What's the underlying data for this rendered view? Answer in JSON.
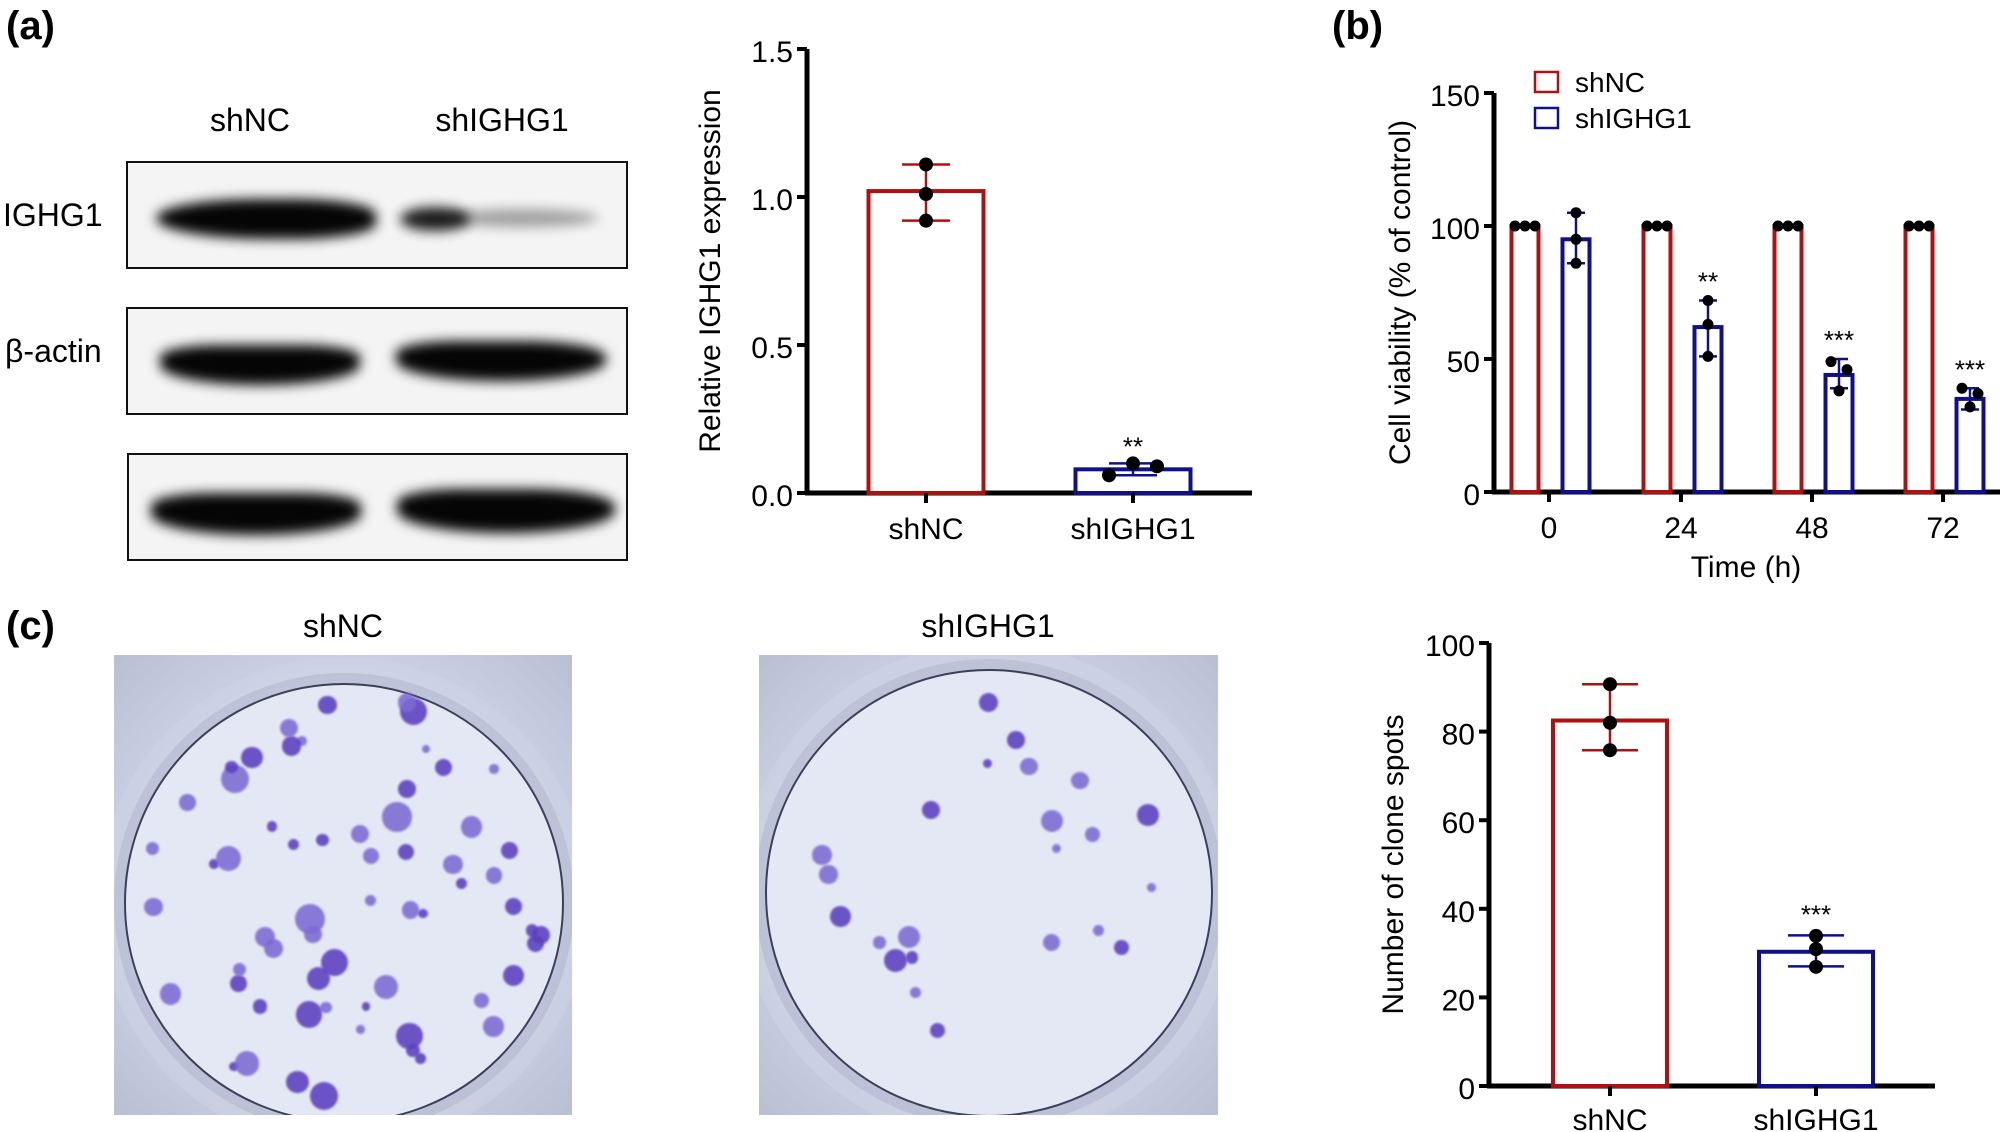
{
  "panels": {
    "a": {
      "label": "(a)",
      "blot": {
        "lanes": [
          "shNC",
          "shIGHG1"
        ],
        "rows": [
          {
            "label": "IGHG1",
            "bands": [
              1.0,
              0.35
            ]
          },
          {
            "label": "β-actin",
            "bands": [
              1.0,
              1.0
            ]
          },
          {
            "label": "",
            "bands": [
              1.0,
              1.0
            ]
          }
        ]
      }
    },
    "b": {
      "label": "(b)"
    },
    "c": {
      "label": "(c)",
      "photos": [
        {
          "label": "shNC",
          "colonies": 83
        },
        {
          "label": "shIGHG1",
          "colonies": 30
        }
      ]
    }
  },
  "colors": {
    "shNC": "#b01010",
    "shIGHG1": "#10108c",
    "dot": "#000000",
    "axis": "#000000"
  },
  "chart_data": [
    {
      "id": "a-bar",
      "type": "bar",
      "title": "",
      "xlabel": "",
      "ylabel": "Relative IGHG1 expression",
      "ylim": [
        0,
        1.5
      ],
      "yticks": [
        0.0,
        0.5,
        1.0,
        1.5
      ],
      "ytick_labels": [
        "0.0",
        "0.5",
        "1.0",
        "1.5"
      ],
      "categories": [
        "shNC",
        "shIGHG1"
      ],
      "values": [
        1.02,
        0.08
      ],
      "error": [
        [
          0.92,
          1.11
        ],
        [
          0.06,
          0.1
        ]
      ],
      "points": [
        [
          1.11,
          1.01,
          0.92
        ],
        [
          0.06,
          0.1,
          0.09
        ]
      ],
      "significance": [
        "",
        "**"
      ],
      "grid": false,
      "legend": null
    },
    {
      "id": "b-grouped-bar",
      "type": "bar",
      "title": "",
      "xlabel": "Time (h)",
      "ylabel": "Cell viability (% of control)",
      "ylim": [
        0,
        150
      ],
      "yticks": [
        0,
        50,
        100,
        150
      ],
      "ytick_labels": [
        "0",
        "50",
        "100",
        "150"
      ],
      "categories": [
        "0",
        "24",
        "48",
        "72"
      ],
      "series": [
        {
          "name": "shNC",
          "values": [
            100,
            100,
            100,
            100
          ],
          "error": [
            [
              100,
              100
            ],
            [
              100,
              100
            ],
            [
              100,
              100
            ],
            [
              100,
              100
            ]
          ],
          "points": [
            [
              100,
              100,
              100
            ],
            [
              100,
              100,
              100
            ],
            [
              100,
              100,
              100
            ],
            [
              100,
              100,
              100
            ]
          ],
          "significance": [
            "",
            "",
            "",
            ""
          ]
        },
        {
          "name": "shIGHG1",
          "values": [
            95,
            62,
            44,
            35
          ],
          "error": [
            [
              86,
              105
            ],
            [
              51,
              72
            ],
            [
              39,
              50
            ],
            [
              31,
              39
            ]
          ],
          "points": [
            [
              105,
              95,
              86
            ],
            [
              72,
              63,
              51
            ],
            [
              49,
              46,
              38
            ],
            [
              39,
              37,
              32
            ]
          ],
          "significance": [
            "",
            "**",
            "***",
            "***"
          ]
        }
      ],
      "legend": {
        "position": "top-left",
        "entries": [
          "shNC",
          "shIGHG1"
        ]
      },
      "grid": false
    },
    {
      "id": "c-bar",
      "type": "bar",
      "title": "",
      "xlabel": "",
      "ylabel": "Number of clone spots",
      "ylim": [
        0,
        100
      ],
      "yticks": [
        0,
        20,
        40,
        60,
        80,
        100
      ],
      "ytick_labels": [
        "0",
        "20",
        "40",
        "60",
        "80",
        "100"
      ],
      "categories": [
        "shNC",
        "shIGHG1"
      ],
      "values": [
        82.5,
        30.3
      ],
      "error": [
        [
          75.8,
          90.7
        ],
        [
          27.0,
          34.0
        ]
      ],
      "points": [
        [
          90.7,
          82.0,
          75.8
        ],
        [
          33.9,
          30.9,
          26.9
        ]
      ],
      "significance": [
        "",
        "***"
      ],
      "grid": false,
      "legend": null
    }
  ]
}
